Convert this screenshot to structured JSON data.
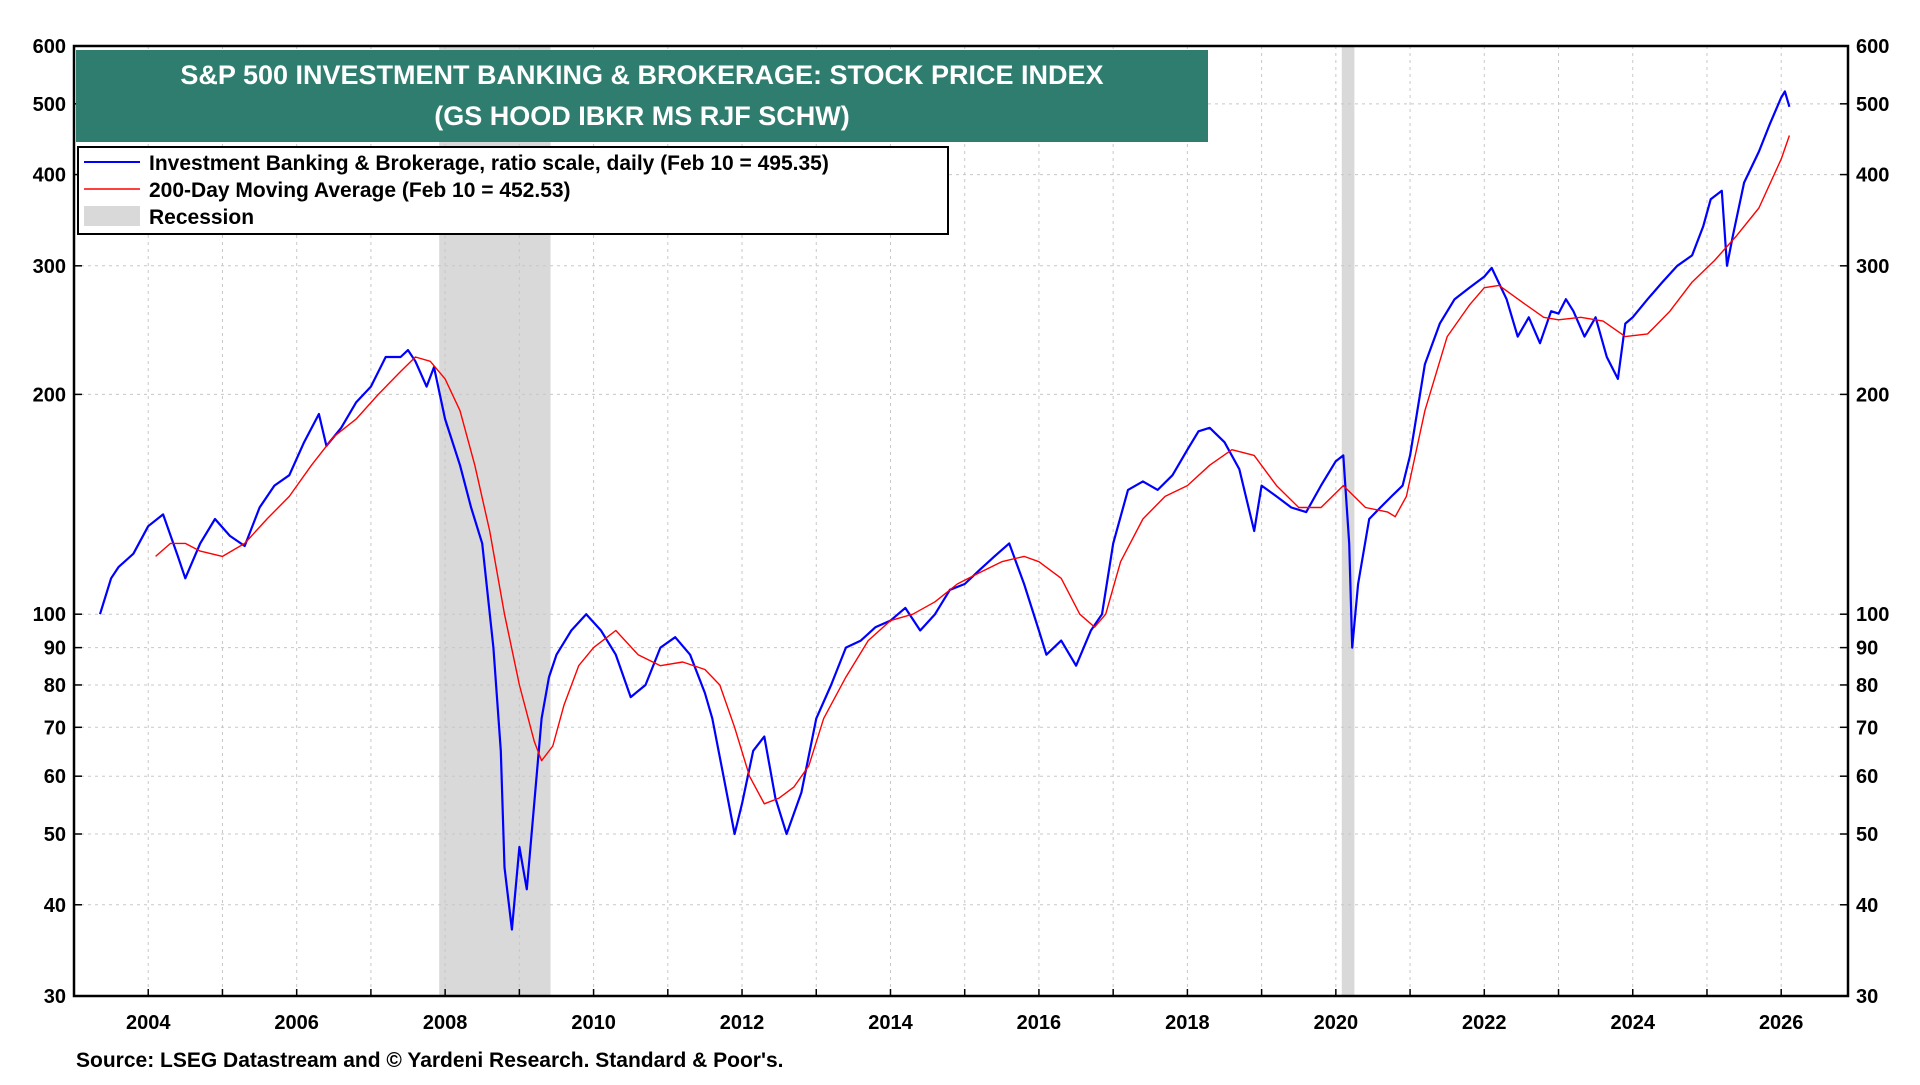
{
  "chart_data": {
    "type": "line",
    "title": "S&P 500 INVESTMENT BANKING & BROKERAGE: STOCK PRICE INDEX",
    "subtitle": "(GS HOOD IBKR MS RJF SCHW)",
    "colors": {
      "title_bg": "#2e7d6f",
      "title_text": "#ffffff",
      "index_line": "#0000ff",
      "ma_line": "#ff0000",
      "recession": "#d9d9d9",
      "grid": "#c8c8c8"
    },
    "scale": "log",
    "ylim": [
      30,
      600
    ],
    "xlim": [
      2003.0,
      2026.9
    ],
    "grid": true,
    "legend_placement": "top-left",
    "y_ticks": [
      30,
      40,
      50,
      60,
      70,
      80,
      90,
      100,
      200,
      300,
      400,
      500,
      600
    ],
    "y_tick_labels": [
      "30",
      "40",
      "50",
      "60",
      "70",
      "80",
      "90",
      "100",
      "200",
      "300",
      "400",
      "500",
      "600"
    ],
    "x_ticks": [
      2004,
      2006,
      2008,
      2010,
      2012,
      2014,
      2016,
      2018,
      2020,
      2022,
      2024,
      2026
    ],
    "x_tick_labels": [
      "2004",
      "2006",
      "2008",
      "2010",
      "2012",
      "2014",
      "2016",
      "2018",
      "2020",
      "2022",
      "2024",
      "2026"
    ],
    "legend": [
      {
        "label": "Investment Banking & Brokerage, ratio scale, daily (Feb 10 = 495.35)",
        "kind": "line",
        "color": "#0000ff"
      },
      {
        "label": "200-Day Moving Average (Feb 10 = 452.53)",
        "kind": "line",
        "color": "#ff0000"
      },
      {
        "label": "Recession",
        "kind": "box",
        "color": "#d9d9d9"
      }
    ],
    "recessions": [
      {
        "start": 2007.92,
        "end": 2009.42
      },
      {
        "start": 2020.08,
        "end": 2020.25
      }
    ],
    "series": [
      {
        "name": "Investment Banking & Brokerage, ratio scale, daily (Feb 10 = 495.35)",
        "x": [
          2003.35,
          2003.5,
          2003.6,
          2003.8,
          2004.0,
          2004.2,
          2004.4,
          2004.5,
          2004.7,
          2004.9,
          2005.1,
          2005.3,
          2005.5,
          2005.7,
          2005.9,
          2006.1,
          2006.3,
          2006.4,
          2006.6,
          2006.8,
          2007.0,
          2007.2,
          2007.4,
          2007.5,
          2007.6,
          2007.75,
          2007.85,
          2008.0,
          2008.2,
          2008.35,
          2008.5,
          2008.65,
          2008.75,
          2008.8,
          2008.9,
          2009.0,
          2009.1,
          2009.2,
          2009.3,
          2009.4,
          2009.5,
          2009.7,
          2009.9,
          2010.1,
          2010.3,
          2010.5,
          2010.7,
          2010.9,
          2011.1,
          2011.3,
          2011.5,
          2011.6,
          2011.75,
          2011.9,
          2012.0,
          2012.15,
          2012.3,
          2012.45,
          2012.6,
          2012.8,
          2013.0,
          2013.2,
          2013.4,
          2013.6,
          2013.8,
          2014.0,
          2014.2,
          2014.4,
          2014.6,
          2014.8,
          2015.0,
          2015.2,
          2015.4,
          2015.6,
          2015.8,
          2016.0,
          2016.1,
          2016.3,
          2016.5,
          2016.7,
          2016.85,
          2017.0,
          2017.2,
          2017.4,
          2017.6,
          2017.8,
          2018.0,
          2018.15,
          2018.3,
          2018.5,
          2018.7,
          2018.9,
          2019.0,
          2019.2,
          2019.4,
          2019.6,
          2019.8,
          2020.0,
          2020.1,
          2020.18,
          2020.22,
          2020.3,
          2020.45,
          2020.6,
          2020.75,
          2020.9,
          2021.0,
          2021.2,
          2021.4,
          2021.6,
          2021.8,
          2022.0,
          2022.1,
          2022.3,
          2022.45,
          2022.6,
          2022.75,
          2022.9,
          2023.0,
          2023.1,
          2023.2,
          2023.35,
          2023.5,
          2023.65,
          2023.8,
          2023.9,
          2024.0,
          2024.2,
          2024.4,
          2024.6,
          2024.8,
          2024.95,
          2025.05,
          2025.2,
          2025.27,
          2025.35,
          2025.5,
          2025.7,
          2025.85,
          2026.0,
          2026.05,
          2026.11
        ],
        "y": [
          100,
          112,
          116,
          121,
          132,
          137,
          120,
          112,
          125,
          135,
          128,
          124,
          140,
          150,
          155,
          172,
          188,
          170,
          180,
          195,
          205,
          225,
          225,
          230,
          222,
          205,
          218,
          185,
          160,
          140,
          125,
          90,
          65,
          45,
          37,
          48,
          42,
          55,
          72,
          82,
          88,
          95,
          100,
          95,
          88,
          77,
          80,
          90,
          93,
          88,
          78,
          72,
          60,
          50,
          55,
          65,
          68,
          56,
          50,
          57,
          72,
          80,
          90,
          92,
          96,
          98,
          102,
          95,
          100,
          108,
          110,
          115,
          120,
          125,
          110,
          95,
          88,
          92,
          85,
          95,
          100,
          125,
          148,
          152,
          148,
          155,
          168,
          178,
          180,
          172,
          158,
          130,
          150,
          145,
          140,
          138,
          150,
          162,
          165,
          125,
          90,
          110,
          135,
          140,
          145,
          150,
          165,
          220,
          250,
          270,
          280,
          290,
          298,
          270,
          240,
          255,
          235,
          260,
          258,
          270,
          260,
          240,
          255,
          225,
          210,
          250,
          255,
          270,
          285,
          300,
          310,
          340,
          370,
          380,
          300,
          330,
          390,
          430,
          470,
          510,
          520,
          495.35
        ]
      },
      {
        "name": "200-Day Moving Average (Feb 10 = 452.53)",
        "x": [
          2004.1,
          2004.3,
          2004.5,
          2004.7,
          2005.0,
          2005.3,
          2005.6,
          2005.9,
          2006.2,
          2006.5,
          2006.8,
          2007.1,
          2007.4,
          2007.6,
          2007.8,
          2008.0,
          2008.2,
          2008.4,
          2008.6,
          2008.8,
          2009.0,
          2009.2,
          2009.3,
          2009.45,
          2009.6,
          2009.8,
          2010.0,
          2010.3,
          2010.6,
          2010.9,
          2011.2,
          2011.5,
          2011.7,
          2011.9,
          2012.1,
          2012.3,
          2012.5,
          2012.7,
          2012.9,
          2013.1,
          2013.4,
          2013.7,
          2014.0,
          2014.3,
          2014.6,
          2014.9,
          2015.2,
          2015.5,
          2015.8,
          2016.0,
          2016.3,
          2016.55,
          2016.75,
          2016.9,
          2017.1,
          2017.4,
          2017.7,
          2018.0,
          2018.3,
          2018.6,
          2018.9,
          2019.2,
          2019.5,
          2019.8,
          2020.1,
          2020.4,
          2020.7,
          2020.8,
          2020.95,
          2021.2,
          2021.5,
          2021.8,
          2022.0,
          2022.2,
          2022.5,
          2022.8,
          2023.0,
          2023.3,
          2023.6,
          2023.9,
          2024.2,
          2024.5,
          2024.8,
          2025.1,
          2025.4,
          2025.7,
          2026.0,
          2026.11
        ],
        "y": [
          120,
          125,
          125,
          122,
          120,
          125,
          135,
          145,
          160,
          175,
          185,
          200,
          215,
          225,
          222,
          210,
          190,
          160,
          130,
          100,
          80,
          67,
          63,
          66,
          75,
          85,
          90,
          95,
          88,
          85,
          86,
          84,
          80,
          70,
          60,
          55,
          56,
          58,
          62,
          72,
          82,
          92,
          98,
          100,
          104,
          110,
          114,
          118,
          120,
          118,
          112,
          100,
          96,
          100,
          118,
          135,
          145,
          150,
          160,
          168,
          165,
          150,
          140,
          140,
          150,
          140,
          138,
          136,
          145,
          190,
          240,
          265,
          280,
          282,
          268,
          255,
          253,
          255,
          252,
          240,
          242,
          260,
          285,
          305,
          330,
          360,
          420,
          452.53
        ]
      }
    ]
  },
  "footer": {
    "source": "Source: LSEG Datastream and © Yardeni Research. Standard & Poor's."
  }
}
